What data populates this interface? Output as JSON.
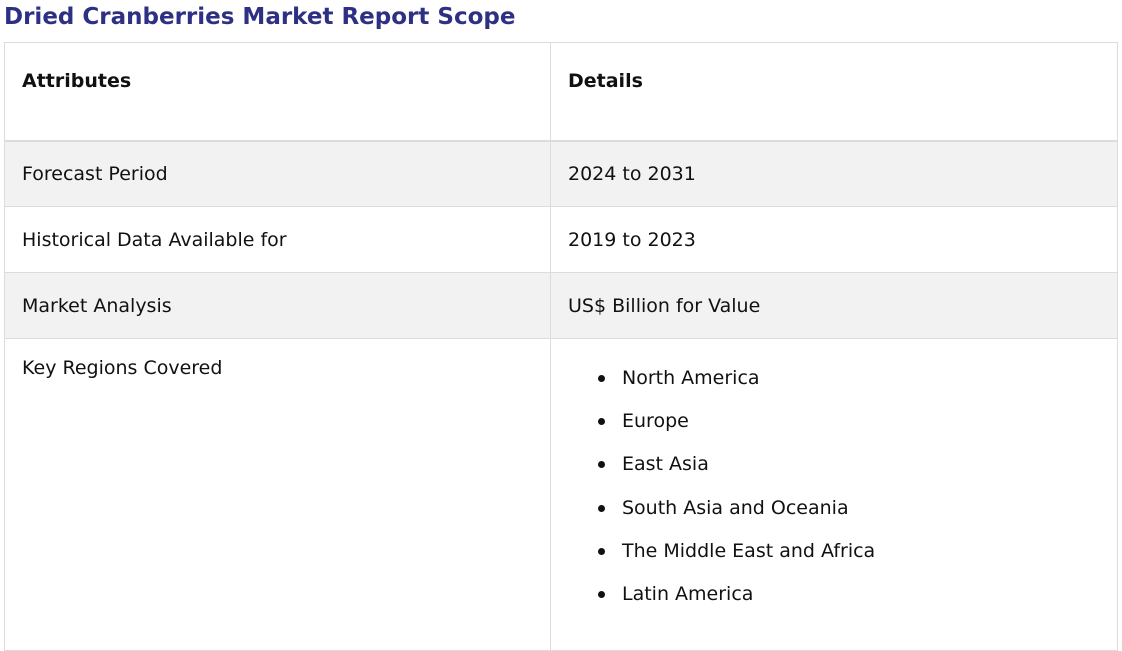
{
  "page": {
    "title": "Dried Cranberries Market Report Scope"
  },
  "table": {
    "headers": [
      "Attributes",
      "Details"
    ],
    "rows": [
      {
        "attribute": "Forecast Period",
        "detail": "2024 to 2031"
      },
      {
        "attribute": "Historical Data Available for",
        "detail": "2019 to 2023"
      },
      {
        "attribute": "Market Analysis",
        "detail": "US$ Billion for Value"
      }
    ],
    "regions": {
      "attribute": "Key Regions Covered",
      "items": [
        "North America",
        "Europe",
        "East Asia",
        "South Asia and Oceania",
        "The Middle East and Africa",
        "Latin America"
      ]
    }
  },
  "colors": {
    "title": "#2e3183",
    "shaded_row": "#f2f2f2",
    "border": "#dcdcdc"
  }
}
